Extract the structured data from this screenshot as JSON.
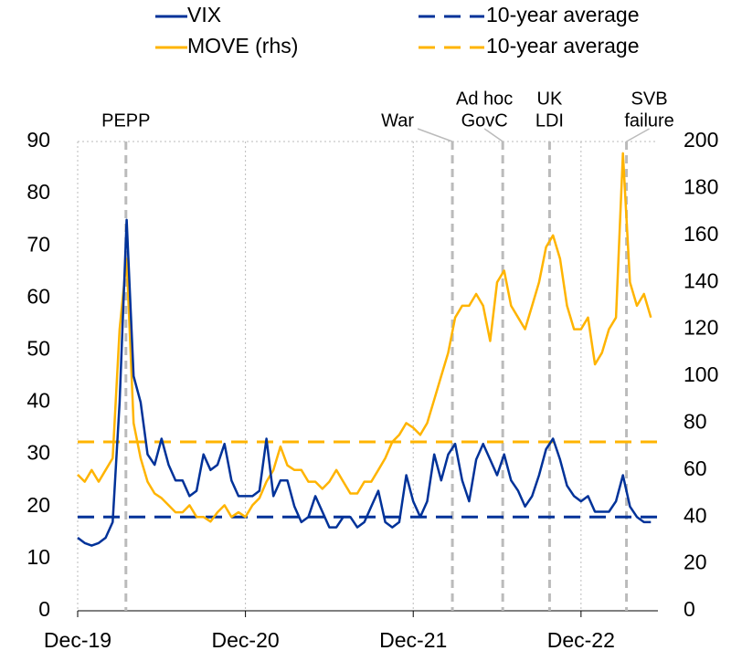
{
  "chart_data": {
    "type": "line",
    "categories": [
      "Dec-19",
      null,
      null,
      null,
      null,
      null,
      null,
      null,
      null,
      null,
      null,
      null,
      null,
      null,
      null,
      null,
      null,
      null,
      null,
      null,
      null,
      null,
      null,
      null,
      "Dec-20",
      null,
      null,
      null,
      null,
      null,
      null,
      null,
      null,
      null,
      null,
      null,
      null,
      null,
      null,
      null,
      null,
      null,
      null,
      null,
      null,
      null,
      null,
      null,
      "Dec-21",
      null,
      null,
      null,
      null,
      null,
      null,
      null,
      null,
      null,
      null,
      null,
      null,
      null,
      null,
      null,
      null,
      null,
      null,
      null,
      null,
      null,
      null,
      null,
      "Dec-22",
      null,
      null,
      null,
      null,
      null,
      null,
      null,
      null,
      null,
      null
    ],
    "series": [
      {
        "name": "VIX",
        "color": "#003299",
        "axis": "y",
        "values": [
          14,
          13,
          12.5,
          13,
          14,
          17,
          40,
          75,
          45,
          40,
          30,
          28,
          33,
          28,
          25,
          25,
          22,
          23,
          30,
          27,
          28,
          32,
          25,
          22,
          22,
          22,
          23,
          33,
          22,
          25,
          25,
          20,
          17,
          18,
          22,
          19,
          16,
          16,
          18,
          18,
          16,
          17,
          20,
          23,
          17,
          16,
          17,
          26,
          21,
          18,
          21,
          30,
          25,
          30,
          32,
          25,
          21,
          29,
          32,
          29,
          26,
          30,
          25,
          23,
          20,
          22,
          26,
          31,
          33,
          29,
          24,
          22,
          21,
          22,
          19,
          19,
          19,
          21,
          26,
          20,
          18,
          17,
          17
        ]
      },
      {
        "name": "MOVE (rhs)",
        "color": "#FFB400",
        "axis": "y2",
        "values": [
          58,
          55,
          60,
          55,
          60,
          65,
          120,
          150,
          80,
          65,
          55,
          50,
          48,
          45,
          42,
          42,
          45,
          40,
          40,
          38,
          42,
          45,
          40,
          42,
          40,
          45,
          48,
          55,
          60,
          70,
          62,
          60,
          60,
          55,
          55,
          52,
          55,
          60,
          55,
          50,
          50,
          55,
          55,
          60,
          65,
          72,
          75,
          80,
          78,
          75,
          80,
          90,
          100,
          110,
          125,
          130,
          130,
          135,
          130,
          115,
          140,
          145,
          130,
          125,
          120,
          130,
          140,
          155,
          160,
          150,
          130,
          120,
          120,
          125,
          105,
          110,
          120,
          125,
          195,
          140,
          130,
          135,
          125
        ]
      }
    ],
    "reference_lines": [
      {
        "name": "10-year average",
        "color": "#003299",
        "axis": "y",
        "value": 18
      },
      {
        "name": "10-year average",
        "color": "#FFB400",
        "axis": "y2",
        "value": 72
      }
    ],
    "events": [
      {
        "label": [
          "PEPP"
        ],
        "x": 6.9
      },
      {
        "label": [
          "War"
        ],
        "x": 53.6
      },
      {
        "label": [
          "Ad hoc",
          "GovC"
        ],
        "x": 60.8
      },
      {
        "label": [
          "UK",
          "LDI"
        ],
        "x": 67.5
      },
      {
        "label": [
          "SVB",
          "failure"
        ],
        "x": 78.5
      }
    ],
    "ylim": [
      0,
      90
    ],
    "yticks": [
      0,
      10,
      20,
      30,
      40,
      50,
      60,
      70,
      80,
      90
    ],
    "y2lim": [
      0,
      200
    ],
    "y2ticks": [
      0,
      20,
      40,
      60,
      80,
      100,
      120,
      140,
      160,
      180,
      200
    ]
  }
}
